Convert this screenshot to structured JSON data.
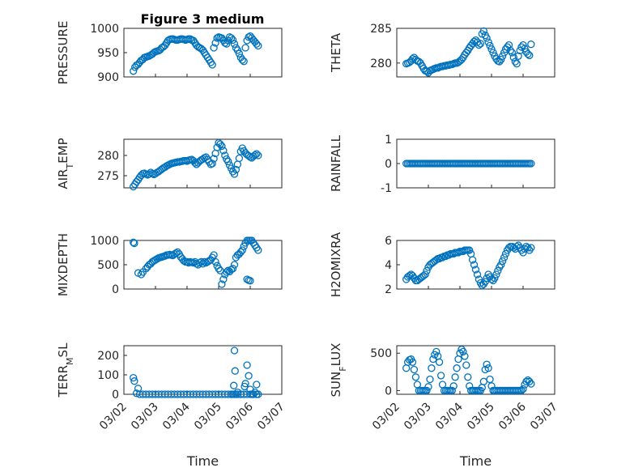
{
  "figure": {
    "title": "Figure 3 medium",
    "xlabel": "Time"
  },
  "chart_data": [
    {
      "type": "scatter",
      "ylabel": "PRESSURE",
      "ylim": [
        900,
        1000
      ],
      "yticks": [
        900,
        950,
        1000
      ],
      "xlim": [
        0,
        5
      ],
      "xticks": [
        "03/02",
        "03/03",
        "03/04",
        "03/05",
        "03/06",
        "03/07"
      ],
      "grid": true,
      "x": [
        0.3,
        0.35,
        0.4,
        0.45,
        0.5,
        0.55,
        0.6,
        0.65,
        0.7,
        0.75,
        0.8,
        0.85,
        0.9,
        0.95,
        1.0,
        1.05,
        1.1,
        1.15,
        1.2,
        1.25,
        1.3,
        1.35,
        1.4,
        1.45,
        1.5,
        1.55,
        1.6,
        1.65,
        1.7,
        1.75,
        1.8,
        1.85,
        1.9,
        1.95,
        2.0,
        2.05,
        2.1,
        2.15,
        2.2,
        2.25,
        2.3,
        2.35,
        2.4,
        2.45,
        2.5,
        2.55,
        2.6,
        2.65,
        2.7,
        2.75,
        2.8,
        2.85,
        2.9,
        2.95,
        3.0,
        3.05,
        3.1,
        3.15,
        3.2,
        3.25,
        3.3,
        3.35,
        3.4,
        3.45,
        3.5,
        3.55,
        3.6,
        3.65,
        3.7,
        3.75,
        3.8,
        3.85,
        3.9,
        3.95,
        4.0,
        4.05,
        4.1,
        4.15,
        4.2,
        4.25
      ],
      "y": [
        912,
        920,
        924,
        926,
        930,
        934,
        936,
        940,
        941,
        942,
        943,
        945,
        947,
        950,
        952,
        953,
        954,
        956,
        960,
        962,
        965,
        970,
        975,
        977,
        978,
        978,
        977,
        976,
        976,
        977,
        978,
        978,
        977,
        976,
        977,
        978,
        978,
        976,
        975,
        970,
        965,
        962,
        960,
        958,
        955,
        950,
        945,
        940,
        935,
        930,
        925,
        960,
        970,
        980,
        982,
        981,
        980,
        975,
        970,
        968,
        975,
        982,
        980,
        976,
        968,
        960,
        955,
        948,
        940,
        935,
        932,
        960,
        975,
        982,
        984,
        980,
        976,
        972,
        968,
        964
      ]
    },
    {
      "type": "scatter",
      "ylabel": "THETA",
      "ylim": [
        278,
        285
      ],
      "yticks": [
        280,
        285
      ],
      "xlim": [
        0,
        5
      ],
      "xticks": [
        "03/02",
        "03/03",
        "03/04",
        "03/05",
        "03/06",
        "03/07"
      ],
      "grid": true,
      "x": [
        0.3,
        0.35,
        0.4,
        0.45,
        0.5,
        0.55,
        0.6,
        0.65,
        0.7,
        0.75,
        0.8,
        0.85,
        0.9,
        0.95,
        1.0,
        1.05,
        1.1,
        1.15,
        1.2,
        1.25,
        1.3,
        1.35,
        1.4,
        1.45,
        1.5,
        1.55,
        1.6,
        1.65,
        1.7,
        1.75,
        1.8,
        1.85,
        1.9,
        1.95,
        2.0,
        2.05,
        2.1,
        2.15,
        2.2,
        2.25,
        2.3,
        2.35,
        2.4,
        2.45,
        2.5,
        2.55,
        2.6,
        2.65,
        2.7,
        2.75,
        2.8,
        2.85,
        2.9,
        2.95,
        3.0,
        3.05,
        3.1,
        3.15,
        3.2,
        3.25,
        3.3,
        3.35,
        3.4,
        3.45,
        3.5,
        3.55,
        3.6,
        3.65,
        3.7,
        3.75,
        3.8,
        3.85,
        3.9,
        3.95,
        4.0,
        4.05,
        4.1,
        4.15,
        4.2,
        4.25
      ],
      "y": [
        279.9,
        280.0,
        280.1,
        280.3,
        280.6,
        280.8,
        280.5,
        280.3,
        280.2,
        280.0,
        279.6,
        279.2,
        278.9,
        278.8,
        278.6,
        278.9,
        279.0,
        279.1,
        279.2,
        279.3,
        279.3,
        279.4,
        279.5,
        279.5,
        279.6,
        279.6,
        279.7,
        279.7,
        279.8,
        279.8,
        279.9,
        280.0,
        280.0,
        280.1,
        280.3,
        280.5,
        280.8,
        281.2,
        281.5,
        281.8,
        282.2,
        282.5,
        282.8,
        283.1,
        283.3,
        283.0,
        282.6,
        282.8,
        284.2,
        284.6,
        284.0,
        283.6,
        283.0,
        282.5,
        282.0,
        281.5,
        281.0,
        280.6,
        280.3,
        280.2,
        280.5,
        281.0,
        281.5,
        282.0,
        282.3,
        282.6,
        281.8,
        281.5,
        280.8,
        280.2,
        279.9,
        281.0,
        281.8,
        282.3,
        282.6,
        282.1,
        281.6,
        281.3,
        281.1,
        282.7
      ]
    },
    {
      "type": "scatter",
      "ylabel": "AIR_TEMP",
      "ylim": [
        272,
        284
      ],
      "yticks": [
        275,
        280
      ],
      "xlim": [
        0,
        5
      ],
      "xticks": [
        "03/02",
        "03/03",
        "03/04",
        "03/05",
        "03/06",
        "03/07"
      ],
      "grid": true,
      "x": [
        0.3,
        0.35,
        0.4,
        0.45,
        0.5,
        0.55,
        0.6,
        0.65,
        0.7,
        0.75,
        0.8,
        0.85,
        0.9,
        0.95,
        1.0,
        1.05,
        1.1,
        1.15,
        1.2,
        1.25,
        1.3,
        1.35,
        1.4,
        1.45,
        1.5,
        1.55,
        1.6,
        1.65,
        1.7,
        1.75,
        1.8,
        1.85,
        1.9,
        1.95,
        2.0,
        2.05,
        2.1,
        2.15,
        2.2,
        2.25,
        2.3,
        2.35,
        2.4,
        2.45,
        2.5,
        2.55,
        2.6,
        2.65,
        2.7,
        2.75,
        2.8,
        2.85,
        2.9,
        2.95,
        3.0,
        3.05,
        3.1,
        3.15,
        3.2,
        3.25,
        3.3,
        3.35,
        3.4,
        3.45,
        3.5,
        3.55,
        3.6,
        3.65,
        3.7,
        3.75,
        3.8,
        3.85,
        3.9,
        3.95,
        4.0,
        4.05,
        4.1,
        4.15,
        4.2,
        4.25
      ],
      "y": [
        272.3,
        272.9,
        273.5,
        274.0,
        274.6,
        275.1,
        275.5,
        275.6,
        275.4,
        275.2,
        275.4,
        275.8,
        275.5,
        275.3,
        275.5,
        275.8,
        276.0,
        276.3,
        276.6,
        276.9,
        277.1,
        277.4,
        277.6,
        277.8,
        278.0,
        278.1,
        278.2,
        278.3,
        278.4,
        278.4,
        278.5,
        278.6,
        278.7,
        278.7,
        278.6,
        278.8,
        278.9,
        279.0,
        278.7,
        278.2,
        277.8,
        278.2,
        278.6,
        278.9,
        279.1,
        279.4,
        279.6,
        279.0,
        278.4,
        277.8,
        278.0,
        279.2,
        280.5,
        282.0,
        283.1,
        282.8,
        282.3,
        281.2,
        280.0,
        279.1,
        278.5,
        277.6,
        276.8,
        276.0,
        275.4,
        276.5,
        277.8,
        279.3,
        281.0,
        281.8,
        281.1,
        280.6,
        280.2,
        279.9,
        279.6,
        279.4,
        279.8,
        280.1,
        280.4,
        280.0
      ]
    },
    {
      "type": "scatter",
      "ylabel": "RAINFALL",
      "ylim": [
        -1,
        1
      ],
      "yticks": [
        -1,
        0,
        1
      ],
      "xlim": [
        0,
        5
      ],
      "xticks": [
        "03/02",
        "03/03",
        "03/04",
        "03/05",
        "03/06",
        "03/07"
      ],
      "grid": true,
      "x": [
        0.3,
        0.35,
        0.4,
        0.45,
        0.5,
        0.55,
        0.6,
        0.65,
        0.7,
        0.75,
        0.8,
        0.85,
        0.9,
        0.95,
        1.0,
        1.05,
        1.1,
        1.15,
        1.2,
        1.25,
        1.3,
        1.35,
        1.4,
        1.45,
        1.5,
        1.55,
        1.6,
        1.65,
        1.7,
        1.75,
        1.8,
        1.85,
        1.9,
        1.95,
        2.0,
        2.05,
        2.1,
        2.15,
        2.2,
        2.25,
        2.3,
        2.35,
        2.4,
        2.45,
        2.5,
        2.55,
        2.6,
        2.65,
        2.7,
        2.75,
        2.8,
        2.85,
        2.9,
        2.95,
        3.0,
        3.05,
        3.1,
        3.15,
        3.2,
        3.25,
        3.3,
        3.35,
        3.4,
        3.45,
        3.5,
        3.55,
        3.6,
        3.65,
        3.7,
        3.75,
        3.8,
        3.85,
        3.9,
        3.95,
        4.0,
        4.05,
        4.1,
        4.15,
        4.2,
        4.25
      ],
      "y": [
        0,
        0,
        0,
        0,
        0,
        0,
        0,
        0,
        0,
        0,
        0,
        0,
        0,
        0,
        0,
        0,
        0,
        0,
        0,
        0,
        0,
        0,
        0,
        0,
        0,
        0,
        0,
        0,
        0,
        0,
        0,
        0,
        0,
        0,
        0,
        0,
        0,
        0,
        0,
        0,
        0,
        0,
        0,
        0,
        0,
        0,
        0,
        0,
        0,
        0,
        0,
        0,
        0,
        0,
        0,
        0,
        0,
        0,
        0,
        0,
        0,
        0,
        0,
        0,
        0,
        0,
        0,
        0,
        0,
        0,
        0,
        0,
        0,
        0,
        0,
        0,
        0,
        0,
        0,
        0
      ]
    },
    {
      "type": "scatter",
      "ylabel": "MIXDEPTH",
      "ylim": [
        0,
        1000
      ],
      "yticks": [
        0,
        500,
        1000
      ],
      "xlim": [
        0,
        5
      ],
      "xticks": [
        "03/02",
        "03/03",
        "03/04",
        "03/05",
        "03/06",
        "03/07"
      ],
      "grid": true,
      "x": [
        0.3,
        0.33,
        0.45,
        0.55,
        0.6,
        0.7,
        0.75,
        0.8,
        0.85,
        0.9,
        0.95,
        1.0,
        1.05,
        1.1,
        1.15,
        1.2,
        1.25,
        1.3,
        1.35,
        1.4,
        1.45,
        1.5,
        1.55,
        1.6,
        1.65,
        1.7,
        1.75,
        1.8,
        1.85,
        1.9,
        1.95,
        2.0,
        2.05,
        2.1,
        2.15,
        2.2,
        2.25,
        2.3,
        2.35,
        2.4,
        2.45,
        2.5,
        2.55,
        2.6,
        2.65,
        2.7,
        2.75,
        2.8,
        2.85,
        2.9,
        2.95,
        3.0,
        3.05,
        3.1,
        3.15,
        3.2,
        3.25,
        3.3,
        3.35,
        3.4,
        3.45,
        3.5,
        3.55,
        3.6,
        3.65,
        3.7,
        3.75,
        3.8,
        3.85,
        3.9,
        3.95,
        4.0,
        4.05,
        4.1,
        4.15,
        4.2,
        4.25,
        3.9,
        3.95,
        4.0
      ],
      "y": [
        960,
        940,
        330,
        300,
        350,
        420,
        460,
        500,
        520,
        560,
        580,
        600,
        620,
        640,
        650,
        660,
        670,
        680,
        700,
        700,
        710,
        700,
        690,
        720,
        740,
        760,
        720,
        660,
        620,
        580,
        560,
        560,
        540,
        560,
        550,
        540,
        560,
        520,
        500,
        540,
        560,
        520,
        560,
        540,
        560,
        580,
        600,
        650,
        700,
        560,
        480,
        420,
        380,
        100,
        200,
        300,
        350,
        380,
        360,
        400,
        420,
        500,
        650,
        700,
        720,
        760,
        800,
        880,
        950,
        1000,
        1020,
        1040,
        1000,
        950,
        900,
        850,
        800,
        200,
        180,
        170
      ]
    },
    {
      "type": "scatter",
      "ylabel": "H2OMIXRA",
      "ylim": [
        2,
        6
      ],
      "yticks": [
        2,
        4,
        6
      ],
      "xlim": [
        0,
        5
      ],
      "xticks": [
        "03/02",
        "03/03",
        "03/04",
        "03/05",
        "03/06",
        "03/07"
      ],
      "grid": true,
      "x": [
        0.3,
        0.35,
        0.4,
        0.45,
        0.5,
        0.55,
        0.6,
        0.65,
        0.7,
        0.75,
        0.8,
        0.85,
        0.9,
        0.95,
        1.0,
        1.05,
        1.1,
        1.15,
        1.2,
        1.25,
        1.3,
        1.35,
        1.4,
        1.45,
        1.5,
        1.55,
        1.6,
        1.65,
        1.7,
        1.75,
        1.8,
        1.85,
        1.9,
        1.95,
        2.0,
        2.05,
        2.1,
        2.15,
        2.2,
        2.25,
        2.3,
        2.35,
        2.4,
        2.45,
        2.5,
        2.55,
        2.6,
        2.65,
        2.7,
        2.75,
        2.8,
        2.85,
        2.9,
        2.95,
        3.0,
        3.05,
        3.1,
        3.15,
        3.2,
        3.25,
        3.3,
        3.35,
        3.4,
        3.45,
        3.5,
        3.55,
        3.6,
        3.65,
        3.7,
        3.75,
        3.8,
        3.85,
        3.9,
        3.95,
        4.0,
        4.05,
        4.1,
        4.15,
        4.2,
        4.25
      ],
      "y": [
        2.8,
        3.0,
        3.1,
        3.2,
        3.1,
        2.9,
        2.7,
        2.7,
        2.8,
        2.9,
        3.0,
        3.1,
        3.2,
        3.5,
        3.8,
        4.0,
        4.1,
        4.2,
        4.3,
        4.4,
        4.5,
        4.5,
        4.6,
        4.6,
        4.7,
        4.7,
        4.8,
        4.8,
        4.9,
        4.9,
        4.9,
        5.0,
        5.0,
        5.0,
        5.1,
        5.1,
        5.1,
        5.2,
        5.2,
        5.2,
        5.2,
        4.9,
        4.4,
        4.0,
        3.6,
        3.2,
        2.8,
        2.5,
        2.3,
        2.4,
        2.6,
        2.9,
        3.2,
        3.0,
        2.8,
        2.7,
        2.9,
        3.2,
        3.5,
        3.8,
        4.0,
        4.3,
        4.6,
        4.9,
        5.2,
        5.4,
        5.5,
        5.5,
        5.4,
        5.3,
        5.5,
        5.6,
        5.4,
        5.2,
        5.0,
        5.3,
        5.5,
        5.4,
        5.2,
        5.4
      ]
    },
    {
      "type": "scatter",
      "ylabel": "TERR_MSL",
      "ylim": [
        0,
        250
      ],
      "yticks": [
        0,
        100,
        200
      ],
      "xlim": [
        0,
        5
      ],
      "xticks": [
        "03/02",
        "03/03",
        "03/04",
        "03/05",
        "03/06",
        "03/07"
      ],
      "grid": true,
      "x": [
        0.3,
        0.33,
        0.4,
        0.5,
        0.6,
        0.7,
        0.8,
        0.9,
        1.0,
        1.1,
        1.2,
        1.3,
        1.4,
        1.5,
        1.6,
        1.7,
        1.8,
        1.9,
        2.0,
        2.1,
        2.2,
        2.3,
        2.4,
        2.5,
        2.6,
        2.7,
        2.8,
        2.9,
        3.0,
        3.1,
        3.2,
        3.3,
        3.4,
        3.5,
        3.6,
        3.7,
        3.8,
        3.9,
        4.0,
        4.1,
        4.2,
        4.25,
        3.5,
        3.52,
        3.48,
        3.55,
        3.45,
        3.85,
        3.9,
        3.95,
        3.82,
        4.0,
        4.1,
        4.15,
        4.2,
        3.6,
        3.7,
        4.05,
        3.4,
        0.45
      ],
      "y": [
        85,
        68,
        5,
        0,
        0,
        0,
        0,
        0,
        0,
        0,
        0,
        0,
        0,
        0,
        0,
        0,
        0,
        0,
        0,
        0,
        0,
        0,
        0,
        0,
        0,
        0,
        0,
        0,
        0,
        0,
        0,
        0,
        0,
        0,
        0,
        0,
        0,
        0,
        0,
        0,
        0,
        0,
        225,
        120,
        45,
        0,
        0,
        55,
        150,
        95,
        40,
        25,
        0,
        10,
        50,
        10,
        0,
        0,
        0,
        30
      ]
    },
    {
      "type": "scatter",
      "ylabel": "SUN_FLUX",
      "ylim": [
        -50,
        600
      ],
      "yticks": [
        0,
        500
      ],
      "xlim": [
        0,
        5
      ],
      "xticks": [
        "03/02",
        "03/03",
        "03/04",
        "03/05",
        "03/06",
        "03/07"
      ],
      "grid": true,
      "x": [
        0.3,
        0.35,
        0.4,
        0.45,
        0.5,
        0.55,
        0.6,
        0.65,
        0.7,
        0.75,
        0.8,
        0.85,
        0.9,
        0.95,
        1.0,
        1.05,
        1.1,
        1.15,
        1.2,
        1.25,
        1.3,
        1.35,
        1.4,
        1.45,
        1.5,
        1.55,
        1.6,
        1.65,
        1.7,
        1.75,
        1.8,
        1.85,
        1.9,
        1.95,
        2.0,
        2.05,
        2.1,
        2.15,
        2.2,
        2.25,
        2.3,
        2.35,
        2.4,
        2.45,
        2.5,
        2.55,
        2.6,
        2.65,
        2.7,
        2.75,
        2.8,
        2.85,
        2.9,
        2.95,
        3.0,
        3.05,
        3.1,
        3.15,
        3.2,
        3.25,
        3.3,
        3.35,
        3.4,
        3.45,
        3.5,
        3.55,
        3.6,
        3.65,
        3.7,
        3.75,
        3.8,
        3.85,
        3.9,
        3.95,
        4.0,
        4.05,
        4.1,
        4.15,
        4.2,
        4.25
      ],
      "y": [
        300,
        380,
        410,
        420,
        380,
        280,
        180,
        80,
        0,
        0,
        0,
        0,
        0,
        0,
        50,
        150,
        300,
        420,
        480,
        520,
        460,
        380,
        200,
        80,
        0,
        0,
        0,
        0,
        0,
        0,
        60,
        180,
        300,
        420,
        500,
        550,
        520,
        460,
        340,
        180,
        60,
        0,
        0,
        0,
        0,
        0,
        0,
        0,
        40,
        120,
        280,
        350,
        300,
        150,
        60,
        0,
        0,
        0,
        0,
        0,
        0,
        0,
        0,
        0,
        0,
        0,
        0,
        0,
        0,
        0,
        0,
        0,
        0,
        0,
        20,
        80,
        120,
        140,
        120,
        90
      ]
    }
  ]
}
